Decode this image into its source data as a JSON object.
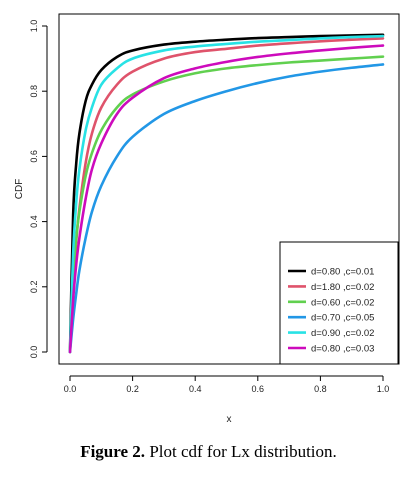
{
  "chart_data": {
    "type": "line",
    "xlabel": "x",
    "ylabel": "CDF",
    "xlim": [
      0,
      1
    ],
    "ylim": [
      0,
      1
    ],
    "x_ticks": [
      "0.0",
      "0.2",
      "0.4",
      "0.6",
      "0.8",
      "1.0"
    ],
    "y_ticks": [
      "0.0",
      "0.2",
      "0.4",
      "0.6",
      "0.8",
      "1.0"
    ],
    "grid": false,
    "legend_position": "bottom-right",
    "x": [
      0.0,
      0.01,
      0.02,
      0.03,
      0.05,
      0.07,
      0.1,
      0.15,
      0.2,
      0.3,
      0.4,
      0.5,
      0.6,
      0.7,
      0.8,
      0.9,
      1.0
    ],
    "series": [
      {
        "name": "d=0.80 ,c=0.01",
        "color": "#000000",
        "values": [
          0.0,
          0.42,
          0.58,
          0.67,
          0.77,
          0.82,
          0.865,
          0.905,
          0.925,
          0.943,
          0.952,
          0.958,
          0.963,
          0.966,
          0.969,
          0.971,
          0.973
        ]
      },
      {
        "name": "d=1.80 ,c=0.02",
        "color": "#df536b",
        "values": [
          0.0,
          0.2,
          0.34,
          0.44,
          0.58,
          0.67,
          0.75,
          0.82,
          0.86,
          0.9,
          0.92,
          0.93,
          0.94,
          0.947,
          0.953,
          0.958,
          0.962
        ]
      },
      {
        "name": "d=0.60 ,c=0.02",
        "color": "#61d04f",
        "values": [
          0.0,
          0.23,
          0.35,
          0.43,
          0.54,
          0.61,
          0.68,
          0.75,
          0.79,
          0.83,
          0.855,
          0.87,
          0.88,
          0.888,
          0.894,
          0.9,
          0.906
        ]
      },
      {
        "name": "d=0.70 ,c=0.05",
        "color": "#2297e6",
        "values": [
          0.0,
          0.1,
          0.18,
          0.25,
          0.35,
          0.43,
          0.51,
          0.6,
          0.66,
          0.73,
          0.77,
          0.8,
          0.825,
          0.845,
          0.86,
          0.872,
          0.882
        ]
      },
      {
        "name": "d=0.90 ,c=0.02",
        "color": "#28e2e5",
        "values": [
          0.0,
          0.3,
          0.46,
          0.56,
          0.68,
          0.75,
          0.82,
          0.87,
          0.9,
          0.925,
          0.937,
          0.945,
          0.952,
          0.957,
          0.962,
          0.966,
          0.969
        ]
      },
      {
        "name": "d=0.80 ,c=0.03",
        "color": "#cd0bbc",
        "values": [
          0.0,
          0.16,
          0.27,
          0.35,
          0.47,
          0.56,
          0.64,
          0.73,
          0.78,
          0.84,
          0.87,
          0.89,
          0.905,
          0.916,
          0.925,
          0.933,
          0.94
        ]
      }
    ]
  },
  "caption": {
    "label": "Figure 2.",
    "text": "Plot cdf for Lx distribution."
  }
}
